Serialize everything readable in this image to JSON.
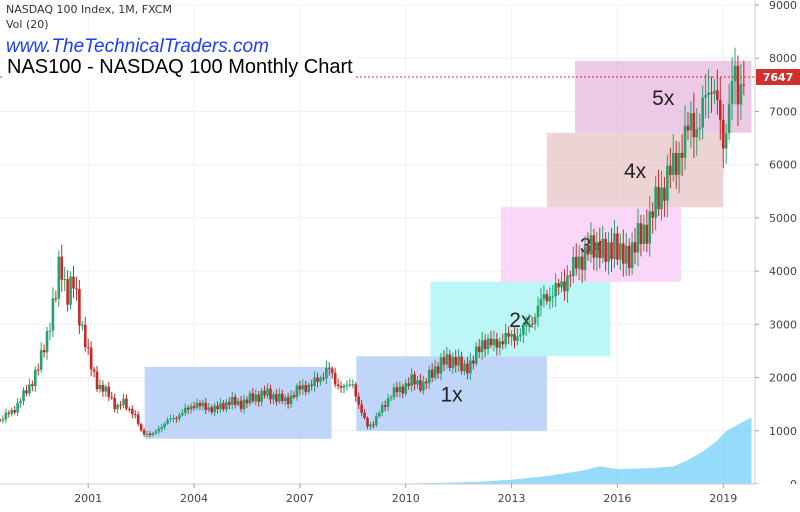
{
  "header": {
    "symbol_line": "NASDAQ 100 Index, 1M, FXCM",
    "volume_line": "Vol (20)",
    "website": "www.TheTechnicalTraders.com",
    "chart_title": "NAS100 - NASDAQ 100 Monthly Chart"
  },
  "colors": {
    "up_candle": "#26a269",
    "down_candle": "#c62828",
    "price_line": "#d32f2f",
    "volume_area": "#4fc3f7"
  },
  "chart_data": {
    "type": "candlestick",
    "title": "NAS100 - NASDAQ 100 Monthly Chart",
    "x_ticks": [
      "2001",
      "2004",
      "2007",
      "2010",
      "2013",
      "2016",
      "2019"
    ],
    "y_ticks": [
      0,
      1000,
      2000,
      3000,
      4000,
      5000,
      6000,
      7000,
      8000,
      9000
    ],
    "ylim": [
      0,
      9000
    ],
    "xlim": [
      1998.5,
      2019.9
    ],
    "last_price": 7647,
    "last_price_label": "7647",
    "price_path": [
      [
        1998.5,
        1200
      ],
      [
        1998.9,
        1400
      ],
      [
        1999.3,
        1800
      ],
      [
        1999.6,
        2200
      ],
      [
        1999.9,
        3000
      ],
      [
        2000.1,
        3600
      ],
      [
        2000.2,
        4300
      ],
      [
        2000.4,
        3500
      ],
      [
        2000.6,
        3800
      ],
      [
        2000.8,
        3000
      ],
      [
        2001.0,
        2400
      ],
      [
        2001.3,
        1800
      ],
      [
        2001.6,
        1700
      ],
      [
        2001.8,
        1400
      ],
      [
        2002.0,
        1550
      ],
      [
        2002.3,
        1300
      ],
      [
        2002.5,
        1000
      ],
      [
        2002.8,
        900
      ],
      [
        2003.0,
        1050
      ],
      [
        2003.3,
        1200
      ],
      [
        2003.6,
        1300
      ],
      [
        2004.0,
        1500
      ],
      [
        2004.3,
        1450
      ],
      [
        2004.6,
        1400
      ],
      [
        2005.0,
        1550
      ],
      [
        2005.3,
        1500
      ],
      [
        2005.6,
        1600
      ],
      [
        2006.0,
        1700
      ],
      [
        2006.3,
        1650
      ],
      [
        2006.6,
        1550
      ],
      [
        2007.0,
        1800
      ],
      [
        2007.3,
        1850
      ],
      [
        2007.6,
        2000
      ],
      [
        2007.8,
        2200
      ],
      [
        2008.0,
        1900
      ],
      [
        2008.3,
        1800
      ],
      [
        2008.5,
        1900
      ],
      [
        2008.7,
        1400
      ],
      [
        2008.9,
        1100
      ],
      [
        2009.1,
        1150
      ],
      [
        2009.3,
        1400
      ],
      [
        2009.6,
        1700
      ],
      [
        2009.9,
        1800
      ],
      [
        2010.2,
        1950
      ],
      [
        2010.5,
        1850
      ],
      [
        2010.8,
        2150
      ],
      [
        2011.1,
        2300
      ],
      [
        2011.4,
        2350
      ],
      [
        2011.6,
        2150
      ],
      [
        2011.9,
        2300
      ],
      [
        2012.2,
        2700
      ],
      [
        2012.5,
        2600
      ],
      [
        2012.8,
        2750
      ],
      [
        2013.0,
        2750
      ],
      [
        2013.3,
        2850
      ],
      [
        2013.6,
        3100
      ],
      [
        2013.9,
        3500
      ],
      [
        2014.2,
        3600
      ],
      [
        2014.5,
        3800
      ],
      [
        2014.9,
        4200
      ],
      [
        2015.2,
        4400
      ],
      [
        2015.5,
        4500
      ],
      [
        2015.7,
        4200
      ],
      [
        2015.9,
        4650
      ],
      [
        2016.1,
        4200
      ],
      [
        2016.4,
        4400
      ],
      [
        2016.7,
        4700
      ],
      [
        2016.9,
        4900
      ],
      [
        2017.1,
        5300
      ],
      [
        2017.4,
        5700
      ],
      [
        2017.6,
        6000
      ],
      [
        2017.9,
        6400
      ],
      [
        2018.1,
        6900
      ],
      [
        2018.3,
        6600
      ],
      [
        2018.5,
        7300
      ],
      [
        2018.7,
        7600
      ],
      [
        2018.9,
        6800
      ],
      [
        2019.0,
        6300
      ],
      [
        2019.1,
        6900
      ],
      [
        2019.3,
        7800
      ],
      [
        2019.4,
        7100
      ],
      [
        2019.6,
        7900
      ]
    ],
    "annotations": [
      {
        "label": "1x",
        "x0": 2008.6,
        "x1": 2014.0,
        "y0": 1000,
        "y1": 2400,
        "color": "#aac8f5"
      },
      {
        "label": "",
        "x0": 2002.6,
        "x1": 2007.9,
        "y0": 850,
        "y1": 2200,
        "color": "#aac8f5"
      },
      {
        "label": "2x",
        "x0": 2010.7,
        "x1": 2015.8,
        "y0": 2400,
        "y1": 3800,
        "color": "#a6f3f3"
      },
      {
        "label": "3x",
        "x0": 2012.7,
        "x1": 2017.8,
        "y0": 3800,
        "y1": 5200,
        "color": "#f8c9f5"
      },
      {
        "label": "4x",
        "x0": 2014.0,
        "x1": 2019.0,
        "y0": 5200,
        "y1": 6600,
        "color": "#e6c4c6"
      },
      {
        "label": "5x",
        "x0": 2014.8,
        "x1": 2019.8,
        "y0": 6600,
        "y1": 7950,
        "color": "#e6b7dc"
      }
    ],
    "volume_area": [
      [
        2010.0,
        10
      ],
      [
        2011.0,
        20
      ],
      [
        2012.0,
        40
      ],
      [
        2013.0,
        80
      ],
      [
        2014.0,
        150
      ],
      [
        2015.0,
        250
      ],
      [
        2015.5,
        330
      ],
      [
        2016.0,
        280
      ],
      [
        2016.5,
        290
      ],
      [
        2017.0,
        300
      ],
      [
        2017.6,
        330
      ],
      [
        2018.0,
        450
      ],
      [
        2018.4,
        600
      ],
      [
        2018.8,
        800
      ],
      [
        2019.1,
        1000
      ],
      [
        2019.5,
        1150
      ],
      [
        2019.8,
        1250
      ]
    ]
  }
}
